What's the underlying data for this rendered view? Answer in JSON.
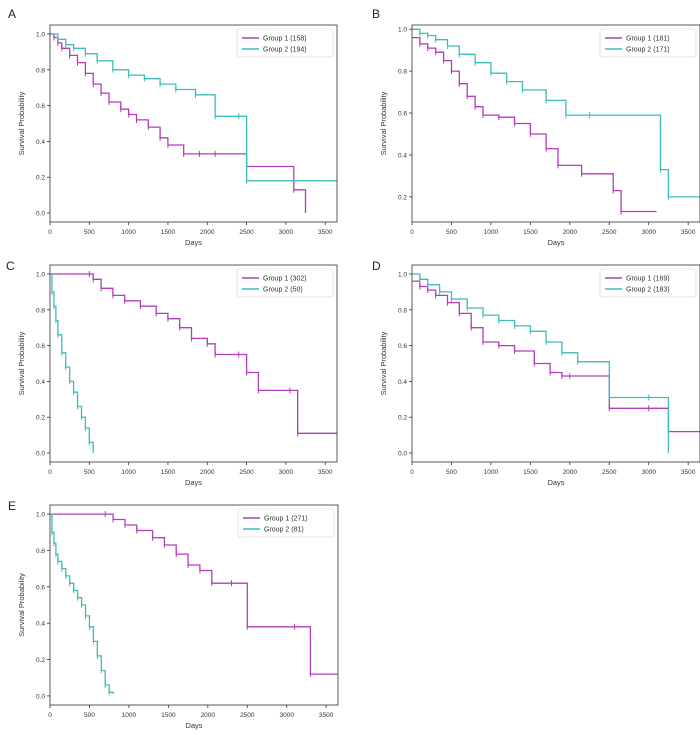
{
  "colors": {
    "group1": "#b23dbb",
    "group2": "#3fbcbc",
    "axis": "#333333"
  },
  "chart_data": [
    {
      "panel": "A",
      "type": "line",
      "xlabel": "Days",
      "ylabel": "Survival Probability",
      "xlim": [
        0,
        3650
      ],
      "ylim": [
        -0.05,
        1.05
      ],
      "xticks": [
        0,
        500,
        1000,
        1500,
        2000,
        2500,
        3000,
        3500
      ],
      "yticks": [
        0.0,
        0.2,
        0.4,
        0.6,
        0.8,
        1.0
      ],
      "legend_position": "top-right",
      "grid": false,
      "series": [
        {
          "name": "Group 1 (158)",
          "color": "group1",
          "x": [
            0,
            50,
            100,
            150,
            250,
            350,
            450,
            550,
            650,
            750,
            900,
            1000,
            1100,
            1250,
            1400,
            1500,
            1700,
            1900,
            2100,
            2500,
            3100,
            3250
          ],
          "y": [
            1.0,
            0.98,
            0.95,
            0.92,
            0.88,
            0.84,
            0.78,
            0.72,
            0.67,
            0.62,
            0.58,
            0.55,
            0.52,
            0.48,
            0.42,
            0.38,
            0.33,
            0.33,
            0.33,
            0.26,
            0.13,
            0.0
          ]
        },
        {
          "name": "Group 2 (194)",
          "color": "group2",
          "x": [
            0,
            100,
            200,
            300,
            450,
            600,
            800,
            1000,
            1200,
            1400,
            1600,
            1850,
            2100,
            2400,
            2500,
            3650
          ],
          "y": [
            1.0,
            0.97,
            0.94,
            0.92,
            0.89,
            0.85,
            0.8,
            0.77,
            0.75,
            0.72,
            0.69,
            0.66,
            0.54,
            0.54,
            0.18,
            0.18
          ]
        }
      ]
    },
    {
      "panel": "B",
      "type": "line",
      "xlabel": "Days",
      "ylabel": "Survival Probability",
      "xlim": [
        0,
        3650
      ],
      "ylim": [
        0.08,
        1.02
      ],
      "xticks": [
        0,
        500,
        1000,
        1500,
        2000,
        2500,
        3000,
        3500
      ],
      "yticks": [
        0.2,
        0.4,
        0.6,
        0.8,
        1.0
      ],
      "legend_position": "top-right",
      "grid": false,
      "series": [
        {
          "name": "Group 1 (181)",
          "color": "group1",
          "x": [
            0,
            100,
            200,
            300,
            400,
            500,
            600,
            700,
            800,
            900,
            1100,
            1300,
            1500,
            1700,
            1850,
            2150,
            2550,
            2650,
            3100
          ],
          "y": [
            0.96,
            0.93,
            0.91,
            0.89,
            0.85,
            0.8,
            0.74,
            0.68,
            0.63,
            0.59,
            0.58,
            0.55,
            0.5,
            0.43,
            0.35,
            0.31,
            0.23,
            0.13,
            0.13
          ]
        },
        {
          "name": "Group 2 (171)",
          "color": "group2",
          "x": [
            0,
            100,
            200,
            300,
            450,
            600,
            800,
            1000,
            1200,
            1400,
            1700,
            1950,
            2250,
            3150,
            3250,
            3650
          ],
          "y": [
            1.0,
            0.98,
            0.97,
            0.95,
            0.92,
            0.88,
            0.84,
            0.79,
            0.75,
            0.71,
            0.66,
            0.59,
            0.59,
            0.33,
            0.2,
            0.2
          ]
        }
      ]
    },
    {
      "panel": "C",
      "type": "line",
      "xlabel": "Days",
      "ylabel": "Survival Probability",
      "xlim": [
        0,
        3650
      ],
      "ylim": [
        -0.05,
        1.05
      ],
      "xticks": [
        0,
        500,
        1000,
        1500,
        2000,
        2500,
        3000,
        3500
      ],
      "yticks": [
        0.0,
        0.2,
        0.4,
        0.6,
        0.8,
        1.0
      ],
      "legend_position": "top-right",
      "grid": false,
      "series": [
        {
          "name": "Group 1 (302)",
          "color": "group1",
          "x": [
            0,
            500,
            550,
            650,
            800,
            950,
            1150,
            1350,
            1500,
            1650,
            1800,
            2000,
            2100,
            2400,
            2500,
            2650,
            3050,
            3150,
            3650
          ],
          "y": [
            1.0,
            1.0,
            0.97,
            0.92,
            0.88,
            0.85,
            0.82,
            0.78,
            0.75,
            0.7,
            0.64,
            0.61,
            0.55,
            0.55,
            0.45,
            0.35,
            0.35,
            0.11,
            0.11
          ]
        },
        {
          "name": "Group 2 (50)",
          "color": "group2",
          "x": [
            0,
            25,
            50,
            75,
            100,
            150,
            200,
            250,
            300,
            350,
            400,
            450,
            500,
            550
          ],
          "y": [
            1.0,
            0.9,
            0.82,
            0.74,
            0.66,
            0.56,
            0.48,
            0.4,
            0.34,
            0.26,
            0.2,
            0.14,
            0.06,
            0.0
          ]
        }
      ]
    },
    {
      "panel": "D",
      "type": "line",
      "xlabel": "Days",
      "ylabel": "Survival Probability",
      "xlim": [
        0,
        3650
      ],
      "ylim": [
        -0.05,
        1.05
      ],
      "xticks": [
        0,
        500,
        1000,
        1500,
        2000,
        2500,
        3000,
        3500
      ],
      "yticks": [
        0.0,
        0.2,
        0.4,
        0.6,
        0.8,
        1.0
      ],
      "legend_position": "top-right",
      "grid": false,
      "series": [
        {
          "name": "Group 1 (169)",
          "color": "group1",
          "x": [
            0,
            100,
            200,
            300,
            450,
            600,
            750,
            900,
            1100,
            1300,
            1550,
            1750,
            1900,
            2000,
            2500,
            3000,
            3250,
            3650
          ],
          "y": [
            0.96,
            0.93,
            0.91,
            0.88,
            0.84,
            0.78,
            0.7,
            0.62,
            0.6,
            0.57,
            0.5,
            0.45,
            0.43,
            0.43,
            0.25,
            0.25,
            0.12,
            0.12
          ]
        },
        {
          "name": "Group 2 (183)",
          "color": "group2",
          "x": [
            0,
            100,
            200,
            350,
            500,
            700,
            900,
            1100,
            1300,
            1500,
            1700,
            1900,
            2100,
            2500,
            3000,
            3250
          ],
          "y": [
            1.0,
            0.97,
            0.94,
            0.9,
            0.86,
            0.81,
            0.77,
            0.74,
            0.71,
            0.68,
            0.62,
            0.56,
            0.51,
            0.31,
            0.31,
            0.0
          ]
        }
      ]
    },
    {
      "panel": "E",
      "type": "line",
      "xlabel": "Days",
      "ylabel": "Survival Probability",
      "xlim": [
        0,
        3650
      ],
      "ylim": [
        -0.05,
        1.05
      ],
      "xticks": [
        0,
        500,
        1000,
        1500,
        2000,
        2500,
        3000,
        3500
      ],
      "yticks": [
        0.0,
        0.2,
        0.4,
        0.6,
        0.8,
        1.0
      ],
      "legend_position": "top-right",
      "grid": false,
      "series": [
        {
          "name": "Group 1 (271)",
          "color": "group1",
          "x": [
            0,
            700,
            800,
            950,
            1100,
            1300,
            1450,
            1600,
            1750,
            1900,
            2050,
            2300,
            2500,
            3100,
            3300,
            3650
          ],
          "y": [
            1.0,
            1.0,
            0.97,
            0.94,
            0.91,
            0.87,
            0.83,
            0.78,
            0.72,
            0.69,
            0.62,
            0.62,
            0.38,
            0.38,
            0.12,
            0.12
          ]
        },
        {
          "name": "Group 2 (81)",
          "color": "group2",
          "x": [
            0,
            25,
            50,
            75,
            100,
            150,
            200,
            250,
            300,
            350,
            400,
            450,
            500,
            550,
            600,
            650,
            700,
            750,
            800
          ],
          "y": [
            1.0,
            0.9,
            0.84,
            0.78,
            0.74,
            0.7,
            0.66,
            0.62,
            0.58,
            0.54,
            0.5,
            0.44,
            0.38,
            0.3,
            0.22,
            0.14,
            0.06,
            0.02,
            0.01
          ]
        }
      ]
    }
  ]
}
